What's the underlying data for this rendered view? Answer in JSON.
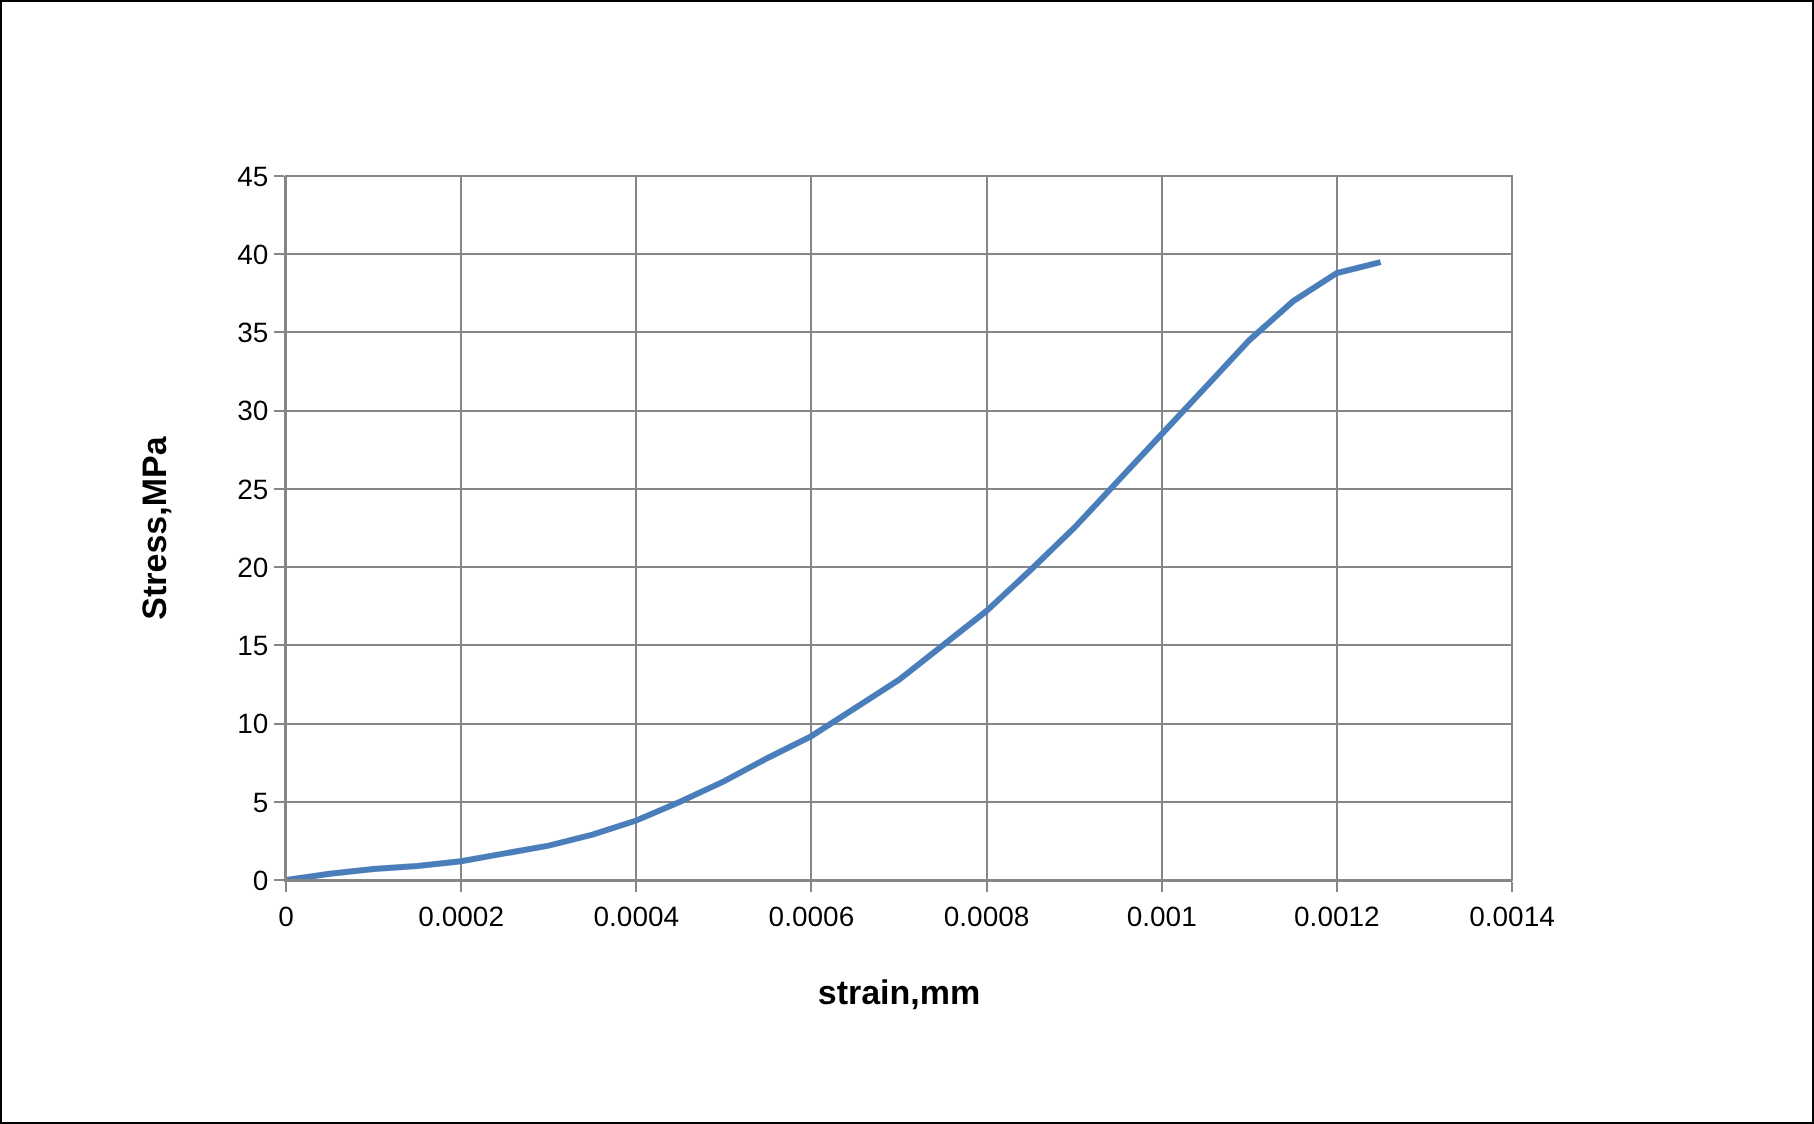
{
  "chart_data": {
    "type": "line",
    "xlabel": "strain,mm",
    "ylabel": "Stress,MPa",
    "x": [
      0,
      5e-05,
      0.0001,
      0.00015,
      0.0002,
      0.00025,
      0.0003,
      0.00035,
      0.0004,
      0.00045,
      0.0005,
      0.00055,
      0.0006,
      0.00065,
      0.0007,
      0.00075,
      0.0008,
      0.00085,
      0.0009,
      0.00095,
      0.001,
      0.00105,
      0.0011,
      0.00115,
      0.0012,
      0.00125
    ],
    "series": [
      {
        "color": "#4a7ebb",
        "values": [
          0,
          0.4,
          0.7,
          0.9,
          1.2,
          1.7,
          2.2,
          2.9,
          3.8,
          5.0,
          6.3,
          7.8,
          9.2,
          11.0,
          12.8,
          15.0,
          17.2,
          19.8,
          22.5,
          25.5,
          28.5,
          31.5,
          34.5,
          37.0,
          38.8,
          39.5
        ]
      }
    ],
    "xlim": [
      0,
      0.0014
    ],
    "xticks": [
      0,
      0.0002,
      0.0004,
      0.0006,
      0.0008,
      0.001,
      0.0012,
      0.0014
    ],
    "ylim": [
      0,
      45
    ],
    "yticks": [
      0,
      5,
      10,
      15,
      20,
      25,
      30,
      35,
      40,
      45
    ],
    "grid": true,
    "legend": false,
    "marker": "none",
    "line_style": "solid"
  }
}
